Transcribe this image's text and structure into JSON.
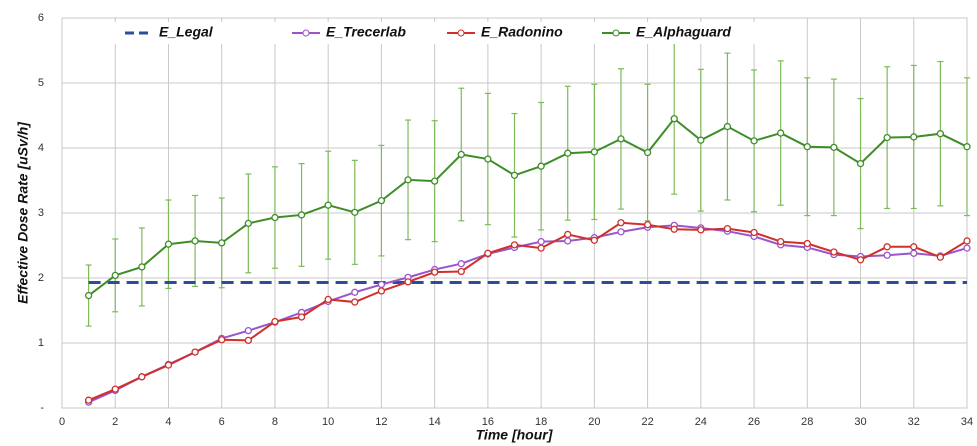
{
  "chart_data": {
    "type": "line",
    "x_label": "Time [hour]",
    "y_label": "Effective Dose Rate [uSv/h]",
    "x": [
      1,
      2,
      3,
      4,
      5,
      6,
      7,
      8,
      9,
      10,
      11,
      12,
      13,
      14,
      15,
      16,
      17,
      18,
      19,
      20,
      21,
      22,
      23,
      24,
      25,
      26,
      27,
      28,
      29,
      30,
      31,
      32,
      33,
      34
    ],
    "xlim": [
      0,
      34
    ],
    "xticks": [
      0,
      2,
      4,
      6,
      8,
      10,
      12,
      14,
      16,
      18,
      20,
      22,
      24,
      26,
      28,
      30,
      32,
      34
    ],
    "ylim": [
      0,
      6
    ],
    "yticks": [
      {
        "value": 0,
        "label": "-"
      },
      1,
      2,
      3,
      4,
      5,
      6
    ],
    "grid": true,
    "legend": "top",
    "series": [
      {
        "name": "E_Legal",
        "color": "#2b4d9b",
        "line_style": "dashed",
        "markers": false,
        "values": [
          1.93,
          1.93,
          1.93,
          1.93,
          1.93,
          1.93,
          1.93,
          1.93,
          1.93,
          1.93,
          1.93,
          1.93,
          1.93,
          1.93,
          1.93,
          1.93,
          1.93,
          1.93,
          1.93,
          1.93,
          1.93,
          1.93,
          1.93,
          1.93,
          1.93,
          1.93,
          1.93,
          1.93,
          1.93,
          1.93,
          1.93,
          1.93,
          1.93,
          1.93
        ]
      },
      {
        "name": "E_Trecerlab",
        "color": "#9a55cc",
        "line_style": "solid",
        "markers": true,
        "values": [
          0.09,
          0.27,
          0.48,
          0.67,
          0.86,
          1.07,
          1.19,
          1.32,
          1.47,
          1.64,
          1.78,
          1.9,
          2.01,
          2.13,
          2.22,
          2.37,
          2.47,
          2.56,
          2.57,
          2.62,
          2.71,
          2.78,
          2.81,
          2.77,
          2.72,
          2.64,
          2.51,
          2.47,
          2.36,
          2.33,
          2.35,
          2.38,
          2.34,
          2.46
        ]
      },
      {
        "name": "E_Radonino",
        "color": "#d0302b",
        "line_style": "solid",
        "markers": true,
        "values": [
          0.12,
          0.29,
          0.48,
          0.66,
          0.86,
          1.05,
          1.04,
          1.33,
          1.4,
          1.67,
          1.63,
          1.8,
          1.94,
          2.09,
          2.1,
          2.38,
          2.51,
          2.46,
          2.67,
          2.58,
          2.85,
          2.82,
          2.75,
          2.74,
          2.76,
          2.7,
          2.56,
          2.53,
          2.4,
          2.28,
          2.48,
          2.48,
          2.32,
          2.57
        ]
      },
      {
        "name": "E_Alphaguard",
        "color": "#3e8e28",
        "line_style": "solid",
        "markers": true,
        "error_color": "#7cbb58",
        "values": [
          1.73,
          2.04,
          2.17,
          2.52,
          2.57,
          2.54,
          2.84,
          2.93,
          2.97,
          3.12,
          3.01,
          3.19,
          3.51,
          3.49,
          3.9,
          3.83,
          3.58,
          3.72,
          3.92,
          3.94,
          4.14,
          3.93,
          4.45,
          4.12,
          4.33,
          4.11,
          4.23,
          4.02,
          4.01,
          3.76,
          4.16,
          4.17,
          4.22,
          4.02
        ],
        "errors": [
          0.47,
          0.56,
          0.6,
          0.68,
          0.7,
          0.69,
          0.76,
          0.78,
          0.79,
          0.83,
          0.8,
          0.85,
          0.92,
          0.93,
          1.02,
          1.01,
          0.95,
          0.98,
          1.03,
          1.04,
          1.08,
          1.05,
          1.16,
          1.09,
          1.13,
          1.09,
          1.11,
          1.06,
          1.05,
          1.0,
          1.09,
          1.1,
          1.11,
          1.06
        ]
      }
    ]
  }
}
